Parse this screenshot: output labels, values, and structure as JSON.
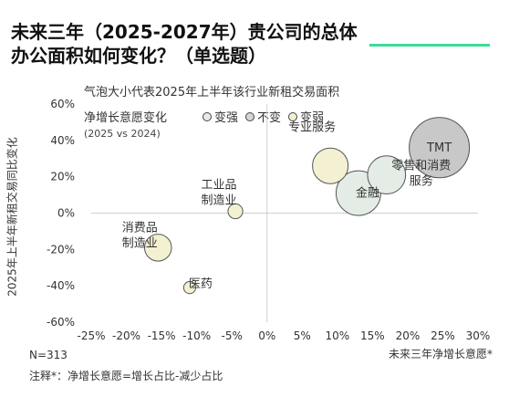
{
  "title": "未来三年（2025-2027年）贵公司的总体办公面积如何变化？（单选题）",
  "accent_color": "#3ddc97",
  "sample_note": "N=313",
  "footnote": "注释*：净增长意愿=增长占比-减少占比",
  "chart_data": {
    "type": "scatter",
    "subtitle": "气泡大小代表2025年上半年该行业新租交易面积",
    "xlabel": "未来三年净增长意愿*",
    "ylabel": "2025年上半年新租交易同比变化",
    "xlim": [
      -25,
      30
    ],
    "ylim": [
      -60,
      60
    ],
    "x_ticks": [
      "-25%",
      "-20%",
      "-15%",
      "-10%",
      "-5%",
      "0%",
      "5%",
      "10%",
      "15%",
      "20%",
      "25%",
      "30%"
    ],
    "x_tick_values": [
      -25,
      -20,
      -15,
      -10,
      -5,
      0,
      5,
      10,
      15,
      20,
      25,
      30
    ],
    "y_ticks": [
      "60%",
      "40%",
      "20%",
      "0%",
      "-20%",
      "-40%",
      "-60%"
    ],
    "y_tick_values": [
      60,
      40,
      20,
      0,
      -20,
      -40,
      -60
    ],
    "grid": false,
    "legend": {
      "title": "净增长意愿变化",
      "subtitle": "(2025 vs 2024)",
      "placement": "top-left",
      "items": [
        {
          "label": "变强",
          "color": "#e4ece6"
        },
        {
          "label": "不变",
          "color": "#d6d6d6"
        },
        {
          "label": "变弱",
          "color": "#f4f1d2"
        }
      ]
    },
    "points": [
      {
        "label": "TMT",
        "x": 24.5,
        "y": 36,
        "size": 100,
        "category": "不变",
        "color": "#c8c8c8"
      },
      {
        "label": "零售和消费服务",
        "x": 17,
        "y": 21,
        "size": 40,
        "category": "变强",
        "color": "#e4ece6"
      },
      {
        "label": "金融",
        "x": 13,
        "y": 11,
        "size": 55,
        "category": "变强",
        "color": "#e4ece6"
      },
      {
        "label": "专业服务",
        "x": 9,
        "y": 26,
        "size": 35,
        "category": "变弱",
        "color": "#f4f1d2"
      },
      {
        "label": "工业品制造业",
        "x": -4.5,
        "y": 1,
        "size": 6,
        "category": "变弱",
        "color": "#f4f1d2"
      },
      {
        "label": "消费品制造业",
        "x": -15.5,
        "y": -19,
        "size": 20,
        "category": "变弱",
        "color": "#f4f1d2"
      },
      {
        "label": "医药",
        "x": -11,
        "y": -41,
        "size": 4,
        "category": "变弱",
        "color": "#f4f1d2"
      }
    ]
  }
}
